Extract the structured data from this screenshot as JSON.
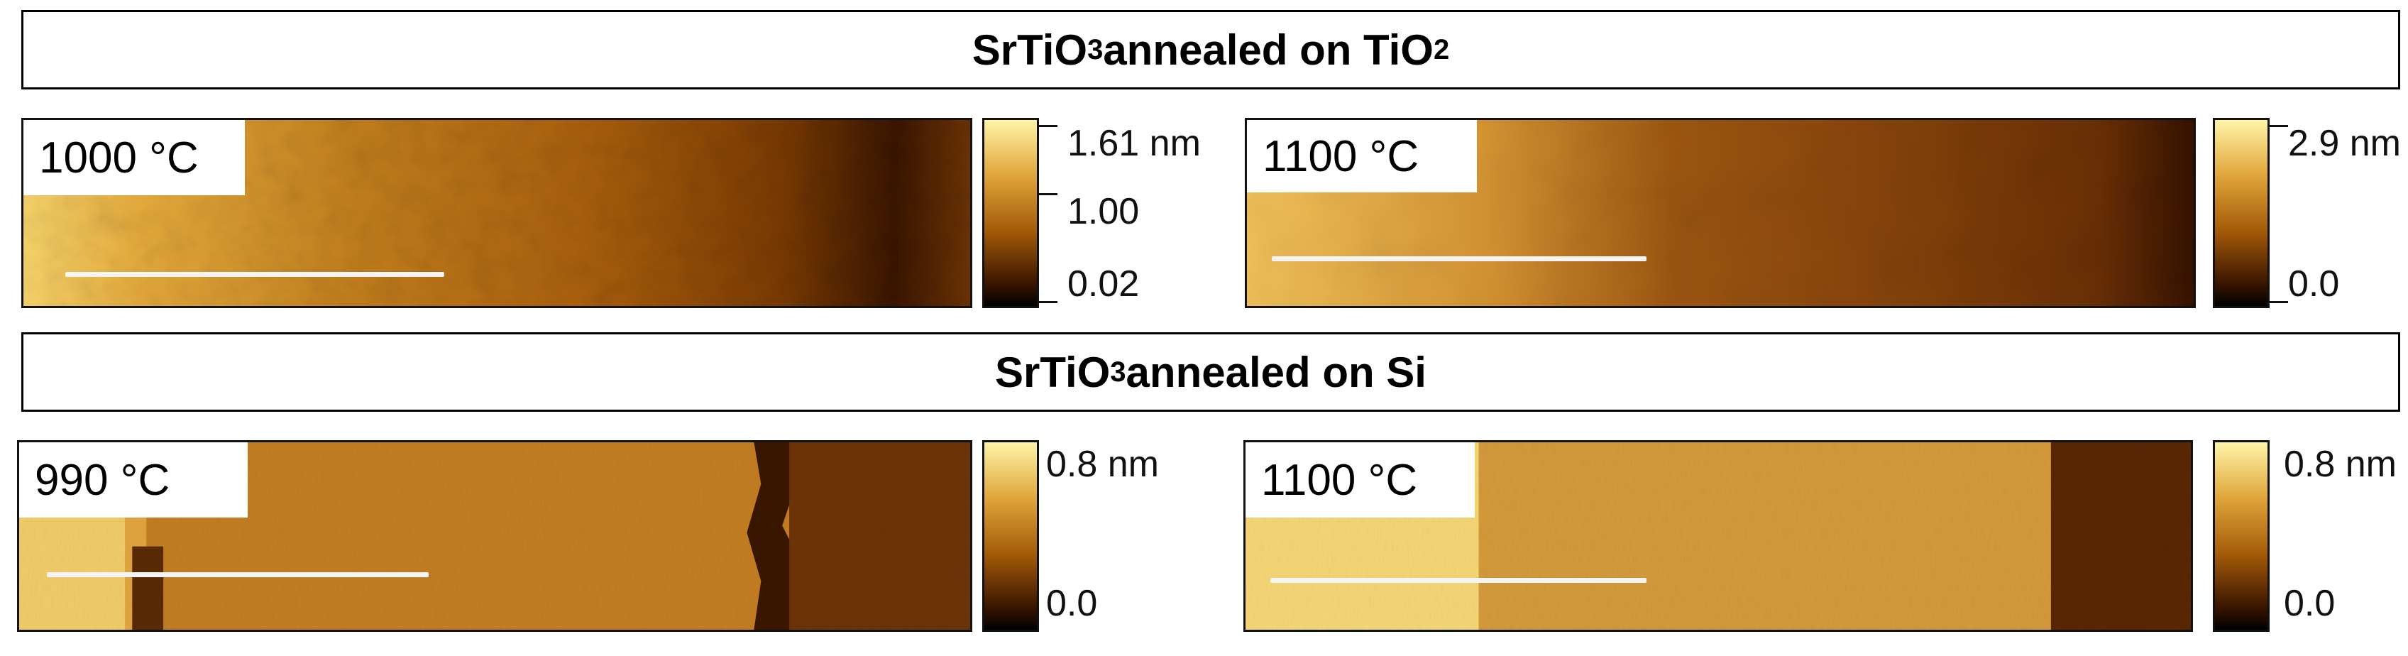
{
  "rows": [
    {
      "title_main": "SrTiO",
      "title_sub": "3",
      "title_rest": " annealed on TiO",
      "title_sub2": "2",
      "panels": [
        {
          "temperature": "1000 °C",
          "colorbar": [
            "1.61 nm",
            "1.00",
            "0.02"
          ],
          "min_nm": 0.02,
          "max_nm": 1.61
        },
        {
          "temperature": "1100 °C",
          "colorbar": [
            "2.9 nm",
            "0.0"
          ],
          "min_nm": 0.0,
          "max_nm": 2.9
        }
      ]
    },
    {
      "title_main": "SrTiO",
      "title_sub": "3",
      "title_rest": " annealed on Si",
      "title_sub2": "",
      "panels": [
        {
          "temperature": "990 °C",
          "colorbar": [
            "0.8 nm",
            "0.0"
          ],
          "min_nm": 0.0,
          "max_nm": 0.8
        },
        {
          "temperature": "1100 °C",
          "colorbar": [
            "0.8 nm",
            "0.0"
          ],
          "min_nm": 0.0,
          "max_nm": 0.8
        }
      ]
    }
  ],
  "colormap": [
    "#000000",
    "#3a1500",
    "#7a3a00",
    "#b86a0c",
    "#e0a53a",
    "#fff0a0"
  ]
}
